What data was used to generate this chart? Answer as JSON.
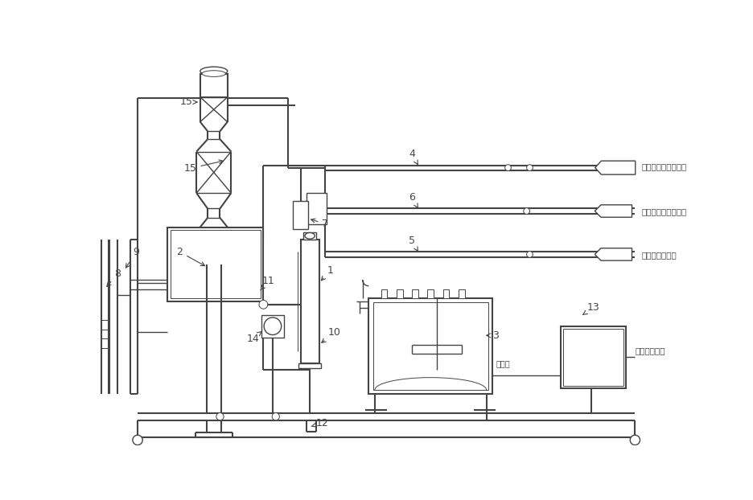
{
  "bg_color": "#ffffff",
  "lc": "#444444",
  "lc2": "#666666",
  "chinese": {
    "co2": "二氧化碳来自蒸发器",
    "pure_water": "工艺纯水来自专用泵",
    "ammonia": "氨水来自专用泵",
    "dosing": "定量给料系统",
    "temperature": "测温口"
  }
}
